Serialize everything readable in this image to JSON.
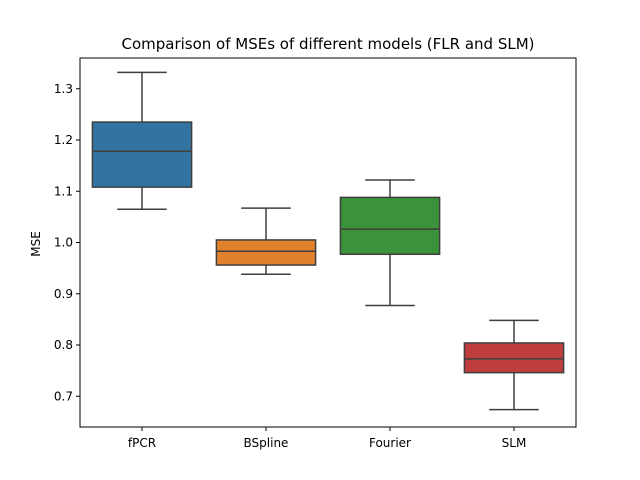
{
  "chart_data": {
    "type": "box",
    "title": "Comparison of MSEs of different models (FLR and SLM)",
    "xlabel": "",
    "ylabel": "MSE",
    "ylim": [
      0.64,
      1.36
    ],
    "yticks": [
      0.7,
      0.8,
      0.9,
      1.0,
      1.1,
      1.2,
      1.3
    ],
    "ytick_labels": [
      "0.7",
      "0.8",
      "0.9",
      "1.0",
      "1.1",
      "1.2",
      "1.3"
    ],
    "categories": [
      "fPCR",
      "BSpline",
      "Fourier",
      "SLM"
    ],
    "colors": [
      "#3274a1",
      "#e1812c",
      "#3a923a",
      "#c03d3e"
    ],
    "boxes": [
      {
        "name": "fPCR",
        "min": 1.065,
        "q1": 1.108,
        "median": 1.178,
        "q3": 1.235,
        "max": 1.332
      },
      {
        "name": "BSpline",
        "min": 0.938,
        "q1": 0.956,
        "median": 0.983,
        "q3": 1.005,
        "max": 1.067
      },
      {
        "name": "Fourier",
        "min": 0.877,
        "q1": 0.977,
        "median": 1.026,
        "q3": 1.088,
        "max": 1.122
      },
      {
        "name": "SLM",
        "min": 0.674,
        "q1": 0.746,
        "median": 0.773,
        "q3": 0.804,
        "max": 0.848
      }
    ],
    "grid": false,
    "legend": "none"
  }
}
